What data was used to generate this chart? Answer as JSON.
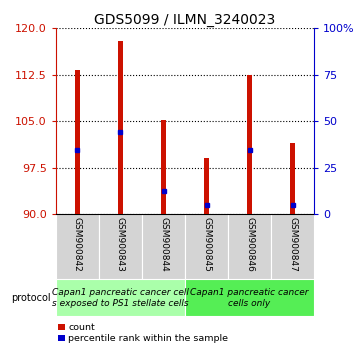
{
  "title": "GDS5099 / ILMN_3240023",
  "samples": [
    "GSM900842",
    "GSM900843",
    "GSM900844",
    "GSM900845",
    "GSM900846",
    "GSM900847"
  ],
  "bar_tops": [
    113.2,
    118.0,
    105.2,
    99.0,
    112.5,
    101.5
  ],
  "bar_base": 90.0,
  "percentile_values": [
    100.3,
    103.2,
    93.8,
    91.4,
    100.4,
    91.4
  ],
  "ylim_left": [
    90,
    120
  ],
  "ylim_right": [
    0,
    100
  ],
  "yticks_left": [
    90,
    97.5,
    105,
    112.5,
    120
  ],
  "yticks_right": [
    0,
    25,
    50,
    75,
    100
  ],
  "bar_color": "#cc1100",
  "pct_color": "#0000cc",
  "protocol_groups": [
    {
      "label": "Capan1 pancreatic cancer cell\ns exposed to PS1 stellate cells",
      "start": 0,
      "end": 3,
      "color": "#aaffaa"
    },
    {
      "label": "Capan1 pancreatic cancer\ncells only",
      "start": 3,
      "end": 6,
      "color": "#55ee55"
    }
  ],
  "legend_count_label": "count",
  "legend_pct_label": "percentile rank within the sample",
  "protocol_label": "protocol",
  "bar_width": 0.12,
  "tick_label_fontsize": 8,
  "title_fontsize": 10,
  "sample_label_fontsize": 6.5,
  "protocol_fontsize": 6.5
}
